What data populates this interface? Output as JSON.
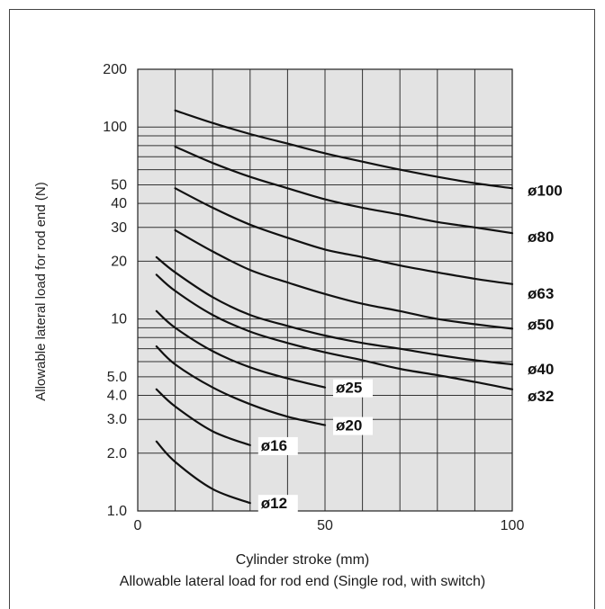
{
  "chart_data": {
    "type": "line",
    "title": "",
    "caption": "Allowable lateral load for rod end (Single rod, with switch)",
    "xlabel": "Cylinder stroke (mm)",
    "ylabel": "Allowable lateral load for rod end (N)",
    "xlim": [
      0,
      100
    ],
    "ylim": [
      1.0,
      200
    ],
    "yscale": "log",
    "x_ticks": [
      {
        "value": 0,
        "label": "0"
      },
      {
        "value": 50,
        "label": "50"
      },
      {
        "value": 100,
        "label": "100"
      }
    ],
    "y_ticks": [
      {
        "value": 1.0,
        "label": "1.0"
      },
      {
        "value": 2.0,
        "label": "2.0"
      },
      {
        "value": 3.0,
        "label": "3.0"
      },
      {
        "value": 4.0,
        "label": "4.0"
      },
      {
        "value": 5.0,
        "label": "5.0"
      },
      {
        "value": 10,
        "label": "10"
      },
      {
        "value": 20,
        "label": "20"
      },
      {
        "value": 30,
        "label": "30"
      },
      {
        "value": 40,
        "label": "40"
      },
      {
        "value": 50,
        "label": "50"
      },
      {
        "value": 100,
        "label": "100"
      },
      {
        "value": 200,
        "label": "200"
      }
    ],
    "grid": true,
    "series": [
      {
        "name": "ø100",
        "x": [
          10,
          20,
          30,
          40,
          50,
          60,
          70,
          80,
          90,
          100
        ],
        "y": [
          122,
          105,
          92,
          82,
          73,
          66,
          60,
          55,
          51,
          48
        ]
      },
      {
        "name": "ø80",
        "x": [
          10,
          20,
          30,
          40,
          50,
          60,
          70,
          80,
          90,
          100
        ],
        "y": [
          79,
          65,
          55,
          48,
          42,
          38,
          35,
          32,
          30,
          28
        ]
      },
      {
        "name": "ø63",
        "x": [
          10,
          20,
          30,
          40,
          50,
          60,
          70,
          80,
          90,
          100
        ],
        "y": [
          48,
          38,
          31,
          26.5,
          23,
          21,
          19,
          17.5,
          16.2,
          15.2
        ]
      },
      {
        "name": "ø50",
        "x": [
          10,
          20,
          30,
          40,
          50,
          60,
          70,
          80,
          90,
          100
        ],
        "y": [
          29,
          22.5,
          18,
          15.5,
          13.5,
          12,
          11,
          10,
          9.4,
          8.9
        ]
      },
      {
        "name": "ø40",
        "x": [
          5,
          10,
          20,
          30,
          40,
          50,
          60,
          70,
          80,
          90,
          100
        ],
        "y": [
          21,
          17.5,
          13,
          10.5,
          9.2,
          8.2,
          7.5,
          7,
          6.5,
          6.1,
          5.8
        ]
      },
      {
        "name": "ø32",
        "x": [
          5,
          10,
          20,
          30,
          40,
          50,
          60,
          70,
          80,
          90,
          100
        ],
        "y": [
          17,
          14,
          10.5,
          8.6,
          7.5,
          6.7,
          6.1,
          5.5,
          5.1,
          4.7,
          4.3
        ]
      },
      {
        "name": "ø25",
        "x": [
          5,
          10,
          20,
          30,
          40,
          50
        ],
        "y": [
          11,
          9,
          6.8,
          5.6,
          4.9,
          4.4
        ]
      },
      {
        "name": "ø20",
        "x": [
          5,
          10,
          20,
          30,
          40,
          50
        ],
        "y": [
          7.2,
          5.8,
          4.4,
          3.6,
          3.1,
          2.8
        ]
      },
      {
        "name": "ø16",
        "x": [
          5,
          10,
          20,
          30
        ],
        "y": [
          4.3,
          3.5,
          2.6,
          2.2
        ]
      },
      {
        "name": "ø12",
        "x": [
          5,
          10,
          20,
          30
        ],
        "y": [
          2.3,
          1.8,
          1.3,
          1.1
        ]
      }
    ]
  }
}
